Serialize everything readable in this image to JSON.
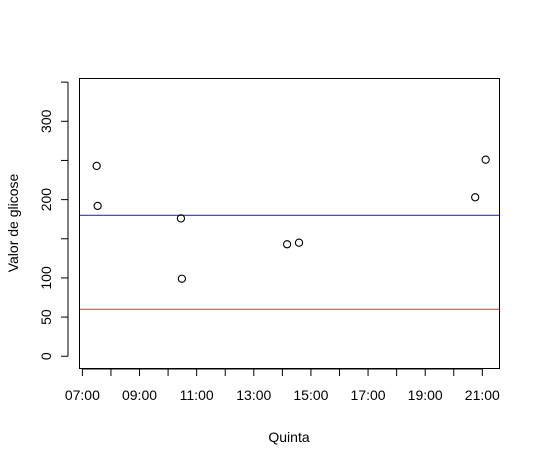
{
  "chart_data": {
    "type": "scatter",
    "title": "",
    "xlabel": "Quinta",
    "ylabel": "Valor de glicose",
    "xlim": [
      "06:55",
      "21:35"
    ],
    "ylim": [
      -15,
      354
    ],
    "x_ticks": [
      "07:00",
      "08:00",
      "09:00",
      "10:00",
      "11:00",
      "12:00",
      "13:00",
      "14:00",
      "15:00",
      "16:00",
      "17:00",
      "18:00",
      "19:00",
      "20:00",
      "21:00"
    ],
    "x_tick_labels": [
      "07:00",
      "",
      "09:00",
      "",
      "11:00",
      "",
      "13:00",
      "",
      "15:00",
      "",
      "17:00",
      "",
      "19:00",
      "",
      "21:00"
    ],
    "y_ticks": [
      0,
      50,
      100,
      150,
      200,
      250,
      300,
      350
    ],
    "y_tick_labels": [
      "0",
      "50",
      "100",
      "",
      "200",
      "",
      "300",
      ""
    ],
    "points": [
      {
        "x": "07:30",
        "y": 243
      },
      {
        "x": "07:32",
        "y": 192
      },
      {
        "x": "10:27",
        "y": 176
      },
      {
        "x": "10:29",
        "y": 99
      },
      {
        "x": "14:10",
        "y": 143
      },
      {
        "x": "14:35",
        "y": 145
      },
      {
        "x": "20:45",
        "y": 203
      },
      {
        "x": "21:07",
        "y": 251
      }
    ],
    "hlines": [
      {
        "y": 180,
        "color": "#3333cc"
      },
      {
        "y": 60,
        "color": "#dd3333"
      }
    ],
    "grid": false,
    "legend": "none"
  }
}
